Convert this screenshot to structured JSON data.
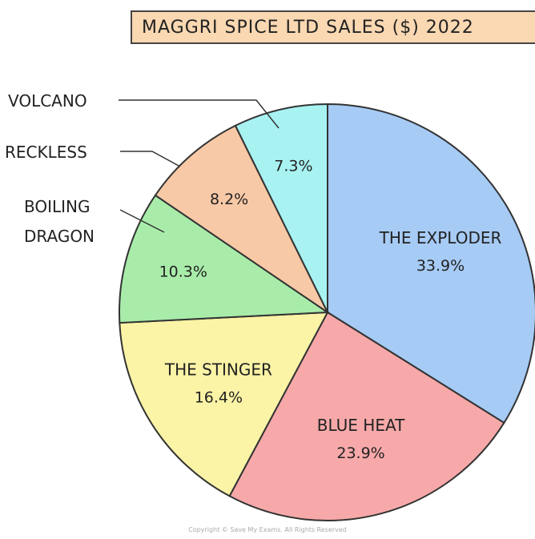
{
  "chart_data": {
    "type": "pie",
    "title": "MAGGRI SPICE LTD SALES ($) 2022",
    "slices": [
      {
        "name": "THE EXPLODER",
        "value": 33.9,
        "label": "33.9%",
        "color": "#a6cbf5",
        "label_position": "inside"
      },
      {
        "name": "BLUE HEAT",
        "value": 23.9,
        "label": "23.9%",
        "color": "#f7a9a9",
        "label_position": "inside"
      },
      {
        "name": "THE STINGER",
        "value": 16.4,
        "label": "16.4%",
        "color": "#fbf3a6",
        "label_position": "inside"
      },
      {
        "name": "BOILING DRAGON",
        "value": 10.3,
        "label": "10.3%",
        "color": "#a9ecaa",
        "label_position": "outside"
      },
      {
        "name": "RECKLESS",
        "value": 8.2,
        "label": "8.2%",
        "color": "#f8c9a6",
        "label_position": "outside"
      },
      {
        "name": "VOLCANO",
        "value": 7.3,
        "label": "7.3%",
        "color": "#a8f2f2",
        "label_position": "outside"
      }
    ]
  },
  "footer": {
    "copyright": "Copyright © Save My Exams. All Rights Reserved"
  }
}
